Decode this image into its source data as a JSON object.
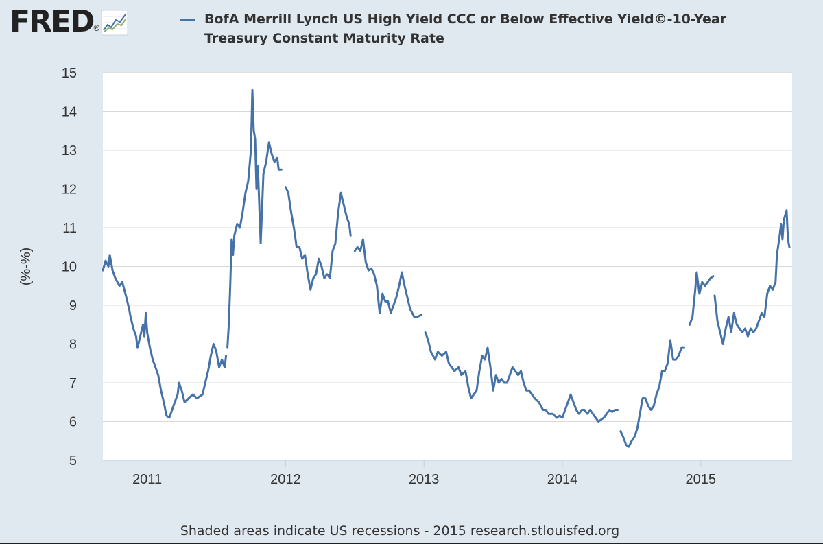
{
  "header": {
    "logo_text": "FRED",
    "logo_mark": "®",
    "logo_icon": "line-chart-icon"
  },
  "colors": {
    "series": "#4572a7",
    "background": "#e1e9f0",
    "plot_background": "#ffffff",
    "grid": "#d8d8d8"
  },
  "footer": {
    "note": "Shaded areas indicate US recessions - 2015 research.stlouisfed.org"
  },
  "chart_data": {
    "type": "line",
    "title": "BofA Merrill Lynch US High Yield CCC or Below Effective Yield©-10-Year Treasury Constant Maturity Rate",
    "xlabel": "",
    "ylabel": "(%-%)",
    "xlim": [
      2010.68,
      2015.66
    ],
    "ylim": [
      5,
      15
    ],
    "yticks": [
      "5",
      "6",
      "7",
      "8",
      "9",
      "10",
      "11",
      "12",
      "13",
      "14",
      "15"
    ],
    "xticks": [
      {
        "label": "2011",
        "value": 2011
      },
      {
        "label": "2012",
        "value": 2012
      },
      {
        "label": "2013",
        "value": 2013
      },
      {
        "label": "2014",
        "value": 2014
      },
      {
        "label": "2015",
        "value": 2015
      }
    ],
    "grid": true,
    "legend": "top",
    "series": [
      {
        "name": "BofA Merrill Lynch US High Yield CCC or Below Effective Yield©-10-Year Treasury Constant Maturity Rate",
        "segments": [
          [
            [
              2010.68,
              9.9
            ],
            [
              2010.7,
              10.15
            ],
            [
              2010.72,
              10.0
            ],
            [
              2010.73,
              10.3
            ],
            [
              2010.75,
              9.9
            ],
            [
              2010.77,
              9.7
            ],
            [
              2010.8,
              9.5
            ],
            [
              2010.82,
              9.6
            ],
            [
              2010.85,
              9.2
            ],
            [
              2010.87,
              8.9
            ],
            [
              2010.88,
              8.7
            ],
            [
              2010.9,
              8.4
            ],
            [
              2010.92,
              8.2
            ],
            [
              2010.93,
              7.9
            ],
            [
              2010.95,
              8.2
            ],
            [
              2010.97,
              8.5
            ],
            [
              2010.98,
              8.2
            ],
            [
              2010.99,
              8.8
            ],
            [
              2011.0,
              8.3
            ],
            [
              2011.02,
              7.9
            ],
            [
              2011.04,
              7.6
            ],
            [
              2011.06,
              7.4
            ],
            [
              2011.08,
              7.2
            ],
            [
              2011.1,
              6.8
            ],
            [
              2011.12,
              6.5
            ],
            [
              2011.14,
              6.15
            ],
            [
              2011.16,
              6.1
            ],
            [
              2011.18,
              6.3
            ],
            [
              2011.2,
              6.5
            ],
            [
              2011.22,
              6.7
            ],
            [
              2011.23,
              7.0
            ],
            [
              2011.25,
              6.8
            ],
            [
              2011.27,
              6.5
            ],
            [
              2011.3,
              6.6
            ],
            [
              2011.33,
              6.7
            ],
            [
              2011.36,
              6.6
            ],
            [
              2011.4,
              6.7
            ],
            [
              2011.42,
              7.0
            ],
            [
              2011.44,
              7.3
            ],
            [
              2011.46,
              7.7
            ],
            [
              2011.48,
              8.0
            ],
            [
              2011.5,
              7.8
            ],
            [
              2011.52,
              7.4
            ],
            [
              2011.54,
              7.6
            ],
            [
              2011.56,
              7.4
            ],
            [
              2011.57,
              7.7
            ]
          ],
          [
            [
              2011.58,
              7.9
            ],
            [
              2011.59,
              8.5
            ],
            [
              2011.6,
              9.5
            ],
            [
              2011.61,
              10.7
            ],
            [
              2011.62,
              10.3
            ],
            [
              2011.63,
              10.8
            ],
            [
              2011.65,
              11.1
            ],
            [
              2011.67,
              11.0
            ],
            [
              2011.69,
              11.4
            ],
            [
              2011.71,
              11.9
            ],
            [
              2011.73,
              12.2
            ],
            [
              2011.74,
              12.6
            ],
            [
              2011.75,
              13.0
            ],
            [
              2011.76,
              14.55
            ],
            [
              2011.77,
              13.5
            ],
            [
              2011.78,
              13.3
            ],
            [
              2011.79,
              12.0
            ],
            [
              2011.8,
              12.6
            ],
            [
              2011.81,
              11.6
            ],
            [
              2011.82,
              10.6
            ],
            [
              2011.83,
              11.5
            ],
            [
              2011.84,
              12.4
            ],
            [
              2011.86,
              12.7
            ],
            [
              2011.88,
              13.2
            ],
            [
              2011.9,
              12.9
            ],
            [
              2011.92,
              12.7
            ],
            [
              2011.94,
              12.8
            ],
            [
              2011.95,
              12.5
            ],
            [
              2011.97,
              12.5
            ]
          ],
          [
            [
              2012.0,
              12.05
            ],
            [
              2012.02,
              11.9
            ],
            [
              2012.04,
              11.4
            ],
            [
              2012.06,
              11.0
            ],
            [
              2012.08,
              10.5
            ],
            [
              2012.1,
              10.5
            ],
            [
              2012.12,
              10.2
            ],
            [
              2012.14,
              10.3
            ],
            [
              2012.16,
              9.8
            ],
            [
              2012.18,
              9.4
            ],
            [
              2012.2,
              9.7
            ],
            [
              2012.22,
              9.8
            ],
            [
              2012.24,
              10.2
            ],
            [
              2012.26,
              10.0
            ],
            [
              2012.28,
              9.7
            ],
            [
              2012.3,
              9.8
            ],
            [
              2012.32,
              9.7
            ],
            [
              2012.34,
              10.4
            ],
            [
              2012.36,
              10.6
            ],
            [
              2012.38,
              11.4
            ],
            [
              2012.4,
              11.9
            ],
            [
              2012.42,
              11.6
            ],
            [
              2012.44,
              11.3
            ],
            [
              2012.46,
              11.1
            ],
            [
              2012.47,
              10.8
            ]
          ],
          [
            [
              2012.5,
              10.4
            ],
            [
              2012.52,
              10.5
            ],
            [
              2012.54,
              10.4
            ],
            [
              2012.56,
              10.7
            ],
            [
              2012.58,
              10.1
            ],
            [
              2012.6,
              9.9
            ],
            [
              2012.62,
              9.95
            ],
            [
              2012.64,
              9.8
            ],
            [
              2012.66,
              9.5
            ],
            [
              2012.68,
              8.8
            ],
            [
              2012.7,
              9.3
            ],
            [
              2012.72,
              9.1
            ],
            [
              2012.74,
              9.1
            ],
            [
              2012.76,
              8.8
            ],
            [
              2012.78,
              9.0
            ],
            [
              2012.8,
              9.2
            ],
            [
              2012.82,
              9.5
            ],
            [
              2012.84,
              9.85
            ],
            [
              2012.86,
              9.5
            ],
            [
              2012.88,
              9.2
            ],
            [
              2012.9,
              8.9
            ],
            [
              2012.93,
              8.7
            ],
            [
              2012.95,
              8.7
            ],
            [
              2012.98,
              8.75
            ]
          ],
          [
            [
              2013.01,
              8.3
            ],
            [
              2013.03,
              8.1
            ],
            [
              2013.05,
              7.8
            ],
            [
              2013.08,
              7.6
            ],
            [
              2013.1,
              7.8
            ],
            [
              2013.13,
              7.7
            ],
            [
              2013.16,
              7.8
            ],
            [
              2013.18,
              7.5
            ],
            [
              2013.2,
              7.4
            ],
            [
              2013.22,
              7.3
            ],
            [
              2013.25,
              7.4
            ],
            [
              2013.27,
              7.2
            ],
            [
              2013.3,
              7.3
            ],
            [
              2013.32,
              6.9
            ],
            [
              2013.34,
              6.6
            ],
            [
              2013.36,
              6.7
            ],
            [
              2013.38,
              6.8
            ],
            [
              2013.4,
              7.3
            ],
            [
              2013.42,
              7.7
            ],
            [
              2013.44,
              7.6
            ],
            [
              2013.46,
              7.9
            ],
            [
              2013.48,
              7.4
            ],
            [
              2013.5,
              6.8
            ],
            [
              2013.52,
              7.2
            ],
            [
              2013.54,
              7.0
            ],
            [
              2013.56,
              7.1
            ],
            [
              2013.58,
              7.0
            ],
            [
              2013.6,
              7.0
            ],
            [
              2013.62,
              7.2
            ],
            [
              2013.64,
              7.4
            ],
            [
              2013.66,
              7.3
            ],
            [
              2013.68,
              7.2
            ],
            [
              2013.7,
              7.3
            ],
            [
              2013.72,
              7.0
            ],
            [
              2013.74,
              6.8
            ],
            [
              2013.76,
              6.8
            ],
            [
              2013.78,
              6.7
            ],
            [
              2013.8,
              6.6
            ],
            [
              2013.83,
              6.5
            ],
            [
              2013.86,
              6.3
            ],
            [
              2013.88,
              6.3
            ],
            [
              2013.9,
              6.2
            ],
            [
              2013.93,
              6.2
            ],
            [
              2013.96,
              6.1
            ],
            [
              2013.98,
              6.15
            ],
            [
              2014.0,
              6.1
            ],
            [
              2014.02,
              6.3
            ],
            [
              2014.04,
              6.5
            ],
            [
              2014.06,
              6.7
            ],
            [
              2014.08,
              6.5
            ],
            [
              2014.1,
              6.3
            ],
            [
              2014.12,
              6.2
            ],
            [
              2014.14,
              6.3
            ],
            [
              2014.16,
              6.3
            ],
            [
              2014.18,
              6.2
            ],
            [
              2014.2,
              6.3
            ],
            [
              2014.22,
              6.2
            ],
            [
              2014.24,
              6.1
            ],
            [
              2014.26,
              6.0
            ],
            [
              2014.28,
              6.05
            ],
            [
              2014.3,
              6.1
            ],
            [
              2014.32,
              6.2
            ],
            [
              2014.34,
              6.3
            ],
            [
              2014.36,
              6.25
            ],
            [
              2014.38,
              6.3
            ],
            [
              2014.4,
              6.3
            ]
          ],
          [
            [
              2014.42,
              5.75
            ],
            [
              2014.44,
              5.6
            ],
            [
              2014.46,
              5.4
            ],
            [
              2014.48,
              5.35
            ],
            [
              2014.5,
              5.5
            ],
            [
              2014.52,
              5.6
            ],
            [
              2014.54,
              5.8
            ],
            [
              2014.56,
              6.2
            ],
            [
              2014.58,
              6.6
            ],
            [
              2014.6,
              6.6
            ],
            [
              2014.62,
              6.4
            ],
            [
              2014.64,
              6.3
            ],
            [
              2014.66,
              6.4
            ],
            [
              2014.68,
              6.7
            ],
            [
              2014.7,
              6.9
            ],
            [
              2014.72,
              7.3
            ],
            [
              2014.74,
              7.3
            ],
            [
              2014.76,
              7.5
            ],
            [
              2014.78,
              8.1
            ],
            [
              2014.8,
              7.6
            ],
            [
              2014.82,
              7.6
            ],
            [
              2014.84,
              7.7
            ],
            [
              2014.86,
              7.9
            ],
            [
              2014.88,
              7.9
            ]
          ],
          [
            [
              2014.92,
              8.5
            ],
            [
              2014.94,
              8.7
            ],
            [
              2014.96,
              9.4
            ],
            [
              2014.97,
              9.85
            ],
            [
              2014.99,
              9.3
            ],
            [
              2015.01,
              9.6
            ],
            [
              2015.03,
              9.5
            ],
            [
              2015.05,
              9.6
            ],
            [
              2015.07,
              9.7
            ],
            [
              2015.09,
              9.75
            ]
          ],
          [
            [
              2015.1,
              9.25
            ],
            [
              2015.12,
              8.6
            ],
            [
              2015.14,
              8.3
            ],
            [
              2015.16,
              8.0
            ],
            [
              2015.18,
              8.4
            ],
            [
              2015.2,
              8.7
            ],
            [
              2015.22,
              8.3
            ],
            [
              2015.24,
              8.8
            ],
            [
              2015.26,
              8.5
            ],
            [
              2015.28,
              8.4
            ],
            [
              2015.3,
              8.3
            ],
            [
              2015.32,
              8.4
            ],
            [
              2015.34,
              8.2
            ],
            [
              2015.36,
              8.4
            ],
            [
              2015.38,
              8.3
            ],
            [
              2015.4,
              8.4
            ],
            [
              2015.42,
              8.6
            ],
            [
              2015.44,
              8.8
            ],
            [
              2015.46,
              8.7
            ],
            [
              2015.48,
              9.3
            ],
            [
              2015.5,
              9.5
            ],
            [
              2015.52,
              9.4
            ],
            [
              2015.54,
              9.6
            ],
            [
              2015.55,
              10.3
            ],
            [
              2015.57,
              10.8
            ],
            [
              2015.58,
              11.1
            ],
            [
              2015.59,
              10.7
            ],
            [
              2015.6,
              11.2
            ],
            [
              2015.62,
              11.45
            ],
            [
              2015.63,
              10.7
            ],
            [
              2015.64,
              10.5
            ]
          ]
        ]
      }
    ]
  }
}
